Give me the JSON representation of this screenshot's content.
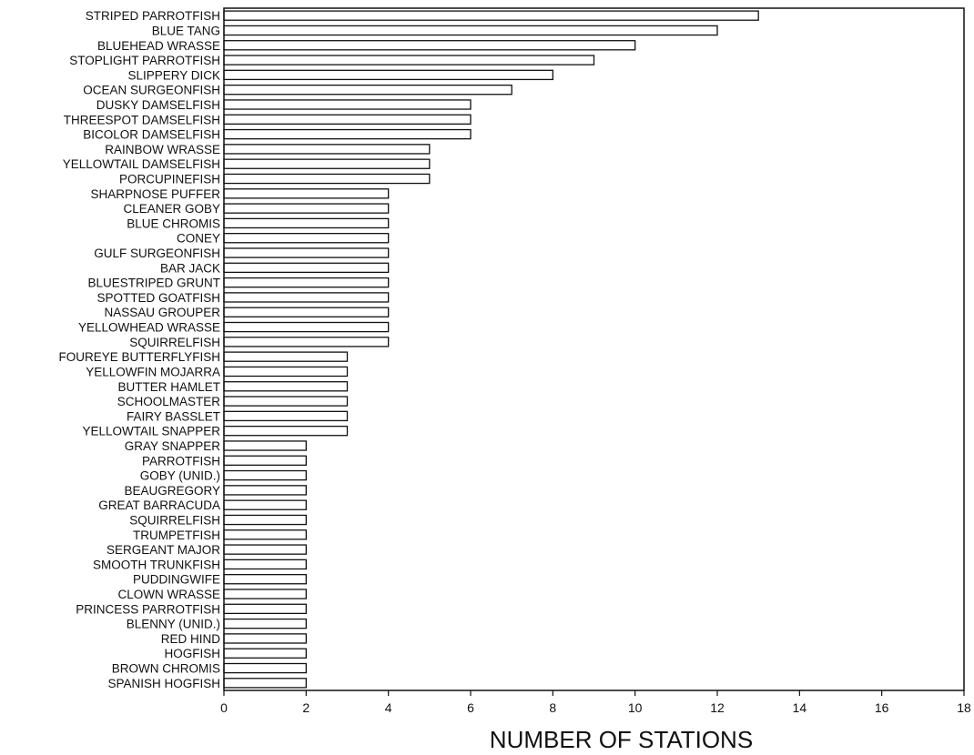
{
  "chart_data": {
    "type": "bar",
    "orientation": "horizontal",
    "title": "",
    "xlabel": "NUMBER OF STATIONS",
    "ylabel": "",
    "xlim": [
      0,
      18
    ],
    "xticks": [
      "0",
      "2",
      "4",
      "6",
      "8",
      "10",
      "12",
      "14",
      "16",
      "18"
    ],
    "grid": false,
    "categories": [
      "STRIPED PARROTFISH",
      "BLUE TANG",
      "BLUEHEAD WRASSE",
      "STOPLIGHT PARROTFISH",
      "SLIPPERY DICK",
      "OCEAN SURGEONFISH",
      "DUSKY DAMSELFISH",
      "THREESPOT DAMSELFISH",
      "BICOLOR DAMSELFISH",
      "RAINBOW WRASSE",
      "YELLOWTAIL DAMSELFISH",
      "PORCUPINEFISH",
      "SHARPNOSE PUFFER",
      "CLEANER GOBY",
      "BLUE CHROMIS",
      "CONEY",
      "GULF SURGEONFISH",
      "BAR JACK",
      "BLUESTRIPED GRUNT",
      "SPOTTED GOATFISH",
      "NASSAU GROUPER",
      "YELLOWHEAD WRASSE",
      "SQUIRRELFISH",
      "FOUREYE BUTTERFLYFISH",
      "YELLOWFIN MOJARRA",
      "BUTTER HAMLET",
      "SCHOOLMASTER",
      "FAIRY BASSLET",
      "YELLOWTAIL SNAPPER",
      "GRAY SNAPPER",
      "PARROTFISH",
      "GOBY (UNID.)",
      "BEAUGREGORY",
      "GREAT BARRACUDA",
      "SQUIRRELFISH",
      "TRUMPETFISH",
      "SERGEANT MAJOR",
      "SMOOTH TRUNKFISH",
      "PUDDINGWIFE",
      "CLOWN WRASSE",
      "PRINCESS PARROTFISH",
      "BLENNY (UNID.)",
      "RED HIND",
      "HOGFISH",
      "BROWN CHROMIS",
      "SPANISH HOGFISH"
    ],
    "values": [
      13,
      12,
      10,
      9,
      8,
      7,
      6,
      6,
      6,
      5,
      5,
      5,
      4,
      4,
      4,
      4,
      4,
      4,
      4,
      4,
      4,
      4,
      4,
      3,
      3,
      3,
      3,
      3,
      3,
      2,
      2,
      2,
      2,
      2,
      2,
      2,
      2,
      2,
      2,
      2,
      2,
      2,
      2,
      2,
      2,
      2
    ]
  }
}
